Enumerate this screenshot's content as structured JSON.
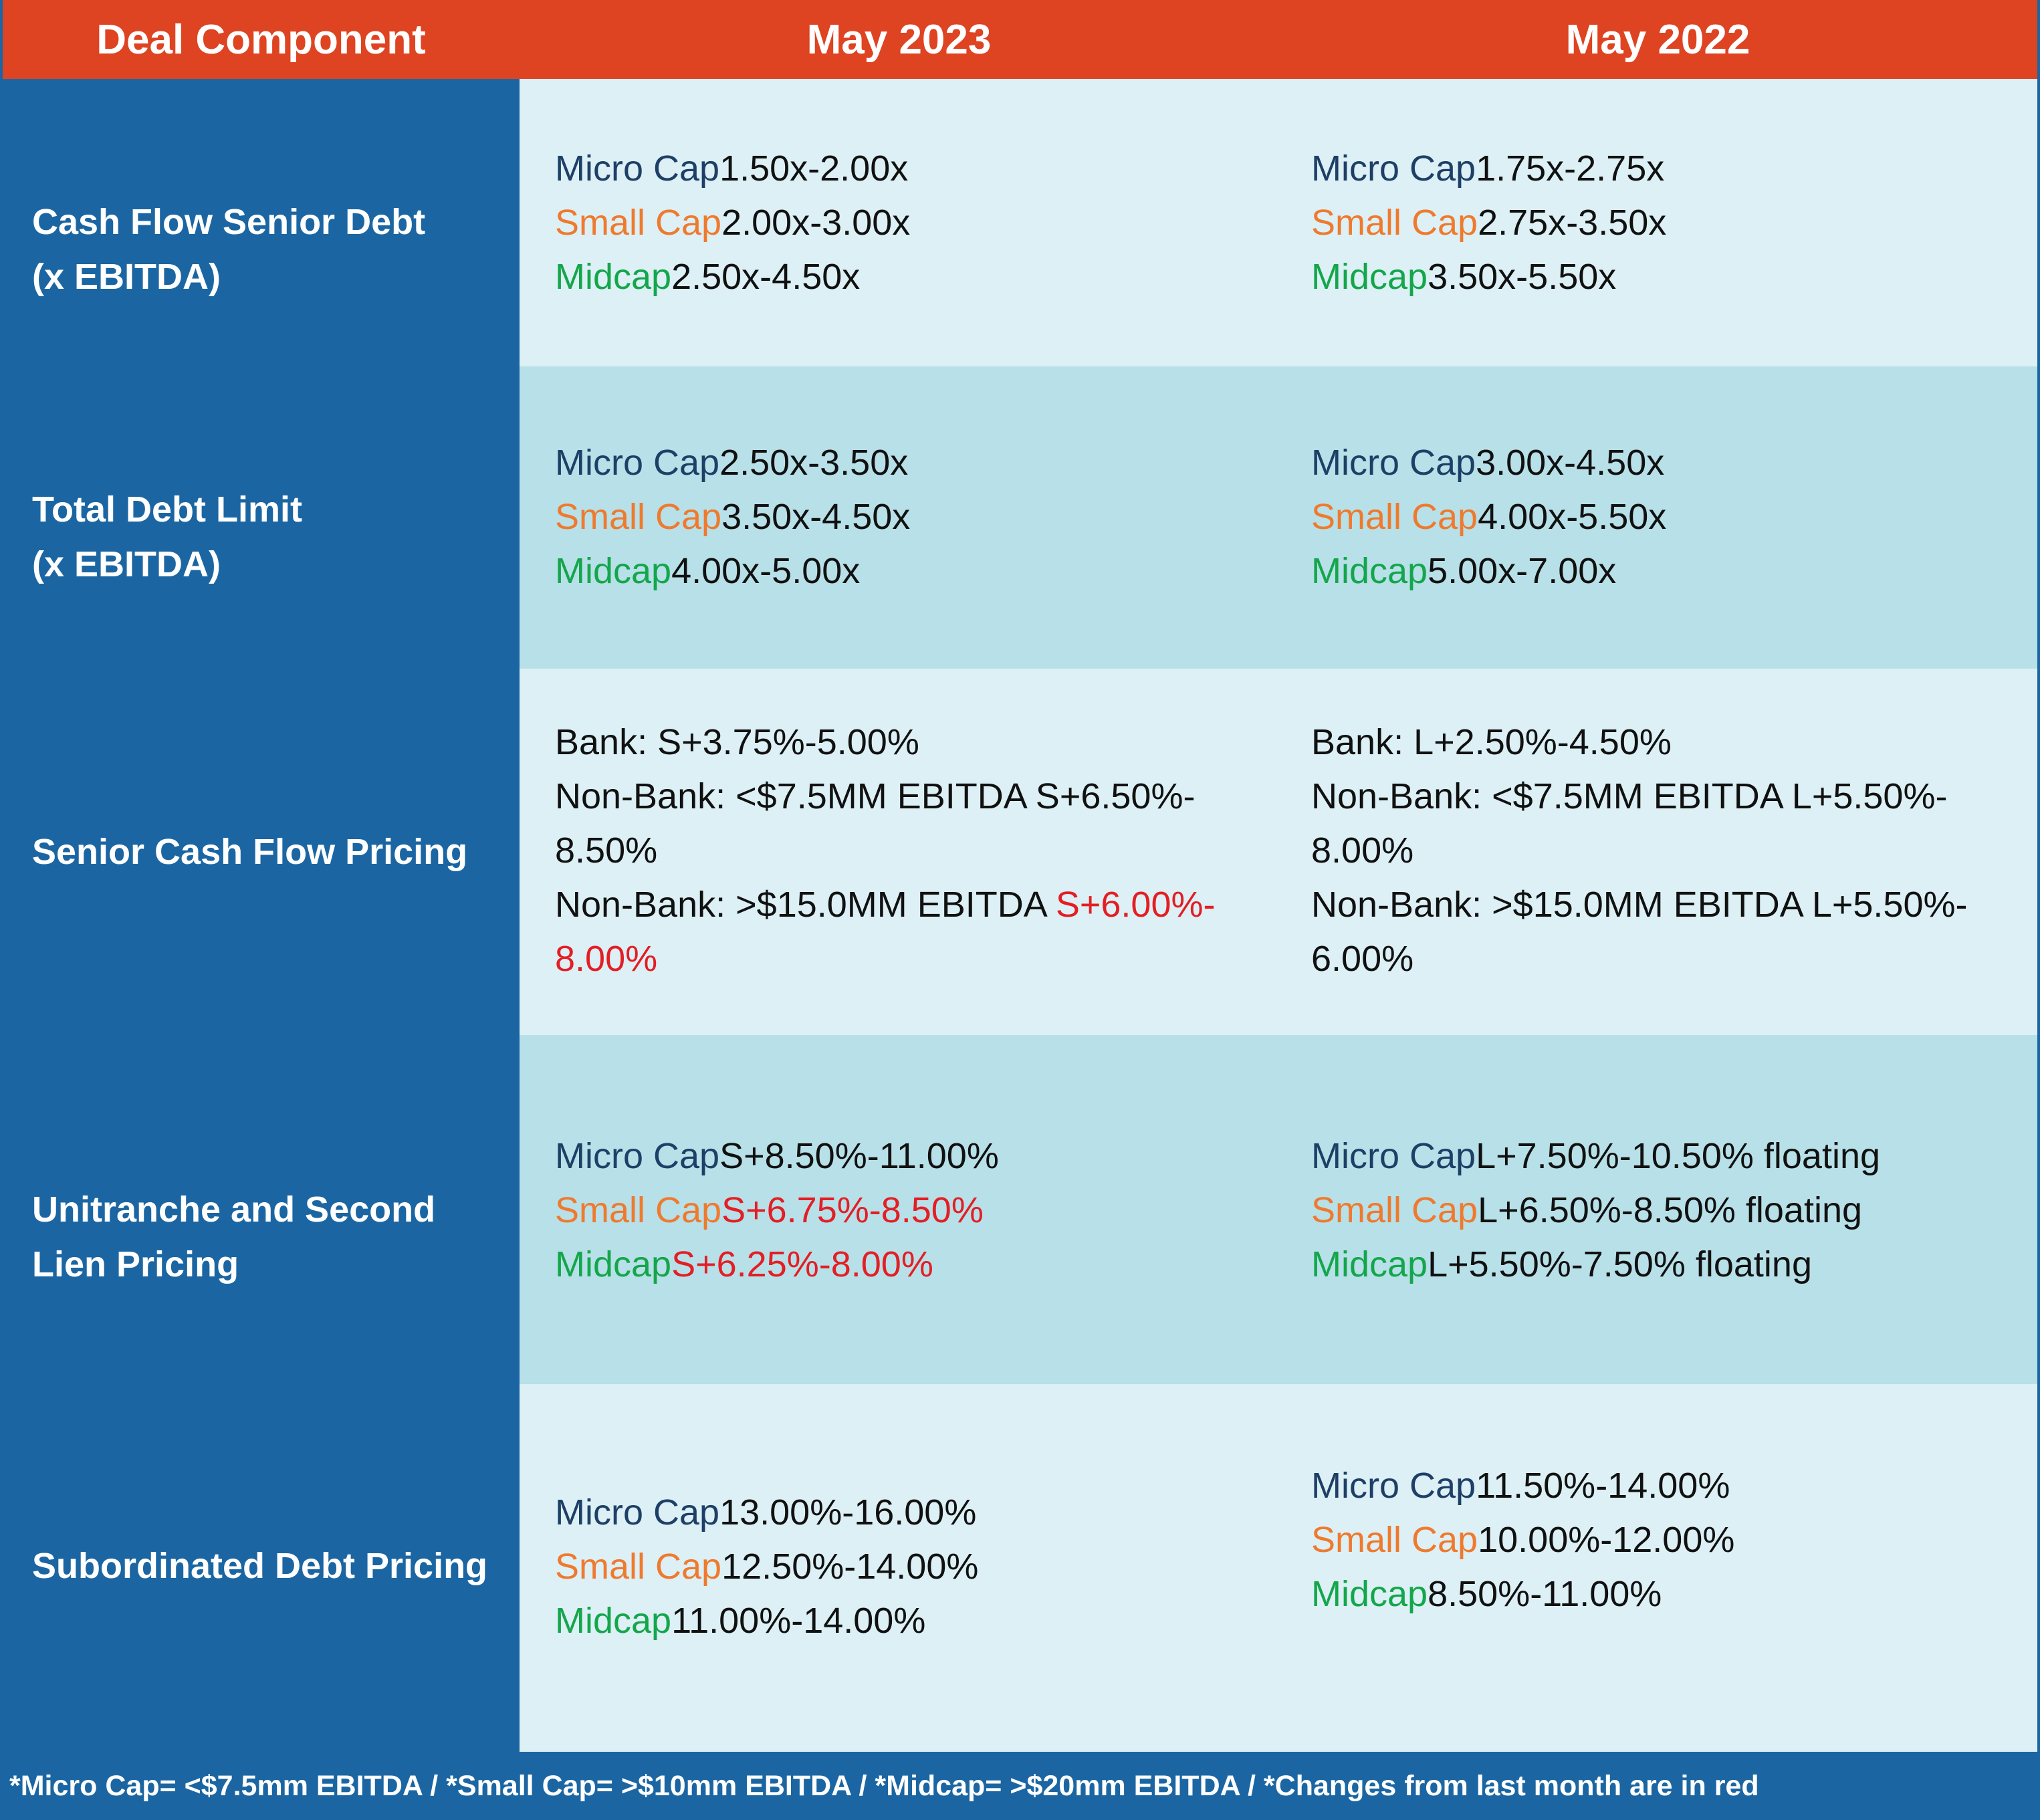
{
  "header": {
    "col1": "Deal Component",
    "col2": "May 2023",
    "col3": "May 2022"
  },
  "labels": {
    "micro": "Micro Cap",
    "small": "Small Cap",
    "mid": "Midcap"
  },
  "rows": [
    {
      "label_lines": [
        "Cash Flow Senior Debt",
        "(x EBITDA)"
      ],
      "may2023": {
        "micro": "1.50x-2.00x",
        "small": "2.00x-3.00x",
        "mid": "2.50x-4.50x"
      },
      "may2022": {
        "micro": "1.75x-2.75x",
        "small": "2.75x-3.50x",
        "mid": "3.50x-5.50x"
      }
    },
    {
      "label_lines": [
        "Total Debt Limit",
        "(x EBITDA)"
      ],
      "may2023": {
        "micro": "2.50x-3.50x",
        "small": "3.50x-4.50x",
        "mid": "4.00x-5.00x"
      },
      "may2022": {
        "micro": "3.00x-4.50x",
        "small": "4.00x-5.50x",
        "mid": "5.00x-7.00x"
      }
    },
    {
      "label_lines": [
        "Senior Cash Flow Pricing"
      ],
      "may2023": {
        "bank": "Bank: S+3.75%-5.00%",
        "nb1_a": "Non-Bank: <$7.5MM EBITDA S+6.50%-",
        "nb1_b": "8.50%",
        "nb2_prefix": "Non-Bank: >$15.0MM EBITDA ",
        "nb2_red_a": "S+6.00%-",
        "nb2_red_b": "8.00%"
      },
      "may2022": {
        "bank": "Bank: L+2.50%-4.50%",
        "nb1_a": "Non-Bank: <$7.5MM EBITDA L+5.50%-",
        "nb1_b": "8.00%",
        "nb2_a": "Non-Bank: >$15.0MM EBITDA L+5.50%-",
        "nb2_b": "6.00%"
      }
    },
    {
      "label_lines": [
        "Unitranche and Second",
        "Lien Pricing"
      ],
      "may2023": {
        "micro": "S+8.50%-11.00%",
        "small": "S+6.75%-8.50%",
        "mid": "S+6.25%-8.00%"
      },
      "may2022": {
        "micro": "L+7.50%-10.50% floating",
        "small": "L+6.50%-8.50% floating",
        "mid": "L+5.50%-7.50% floating"
      }
    },
    {
      "label_lines": [
        "Subordinated Debt Pricing"
      ],
      "may2023": {
        "micro": "13.00%-16.00%",
        "small": "12.50%-14.00%",
        "mid": "11.00%-14.00%"
      },
      "may2022": {
        "micro": "11.50%-14.00%",
        "small": "10.00%-12.00%",
        "mid": "8.50%-11.00%"
      }
    }
  ],
  "footer": "*Micro Cap= <$7.5mm EBITDA / *Small Cap= >$10mm EBITDA / *Midcap= >$20mm EBITDA / *Changes from last month are in red",
  "colors": {
    "header_bg": "#de4322",
    "left_col_bg": "#1b66a2",
    "row_light": "#dcf0f5",
    "row_dark": "#b8e0e8",
    "micro": "#1e3f66",
    "small": "#ef7a2e",
    "mid": "#14a64b",
    "changed": "#e31e24"
  }
}
